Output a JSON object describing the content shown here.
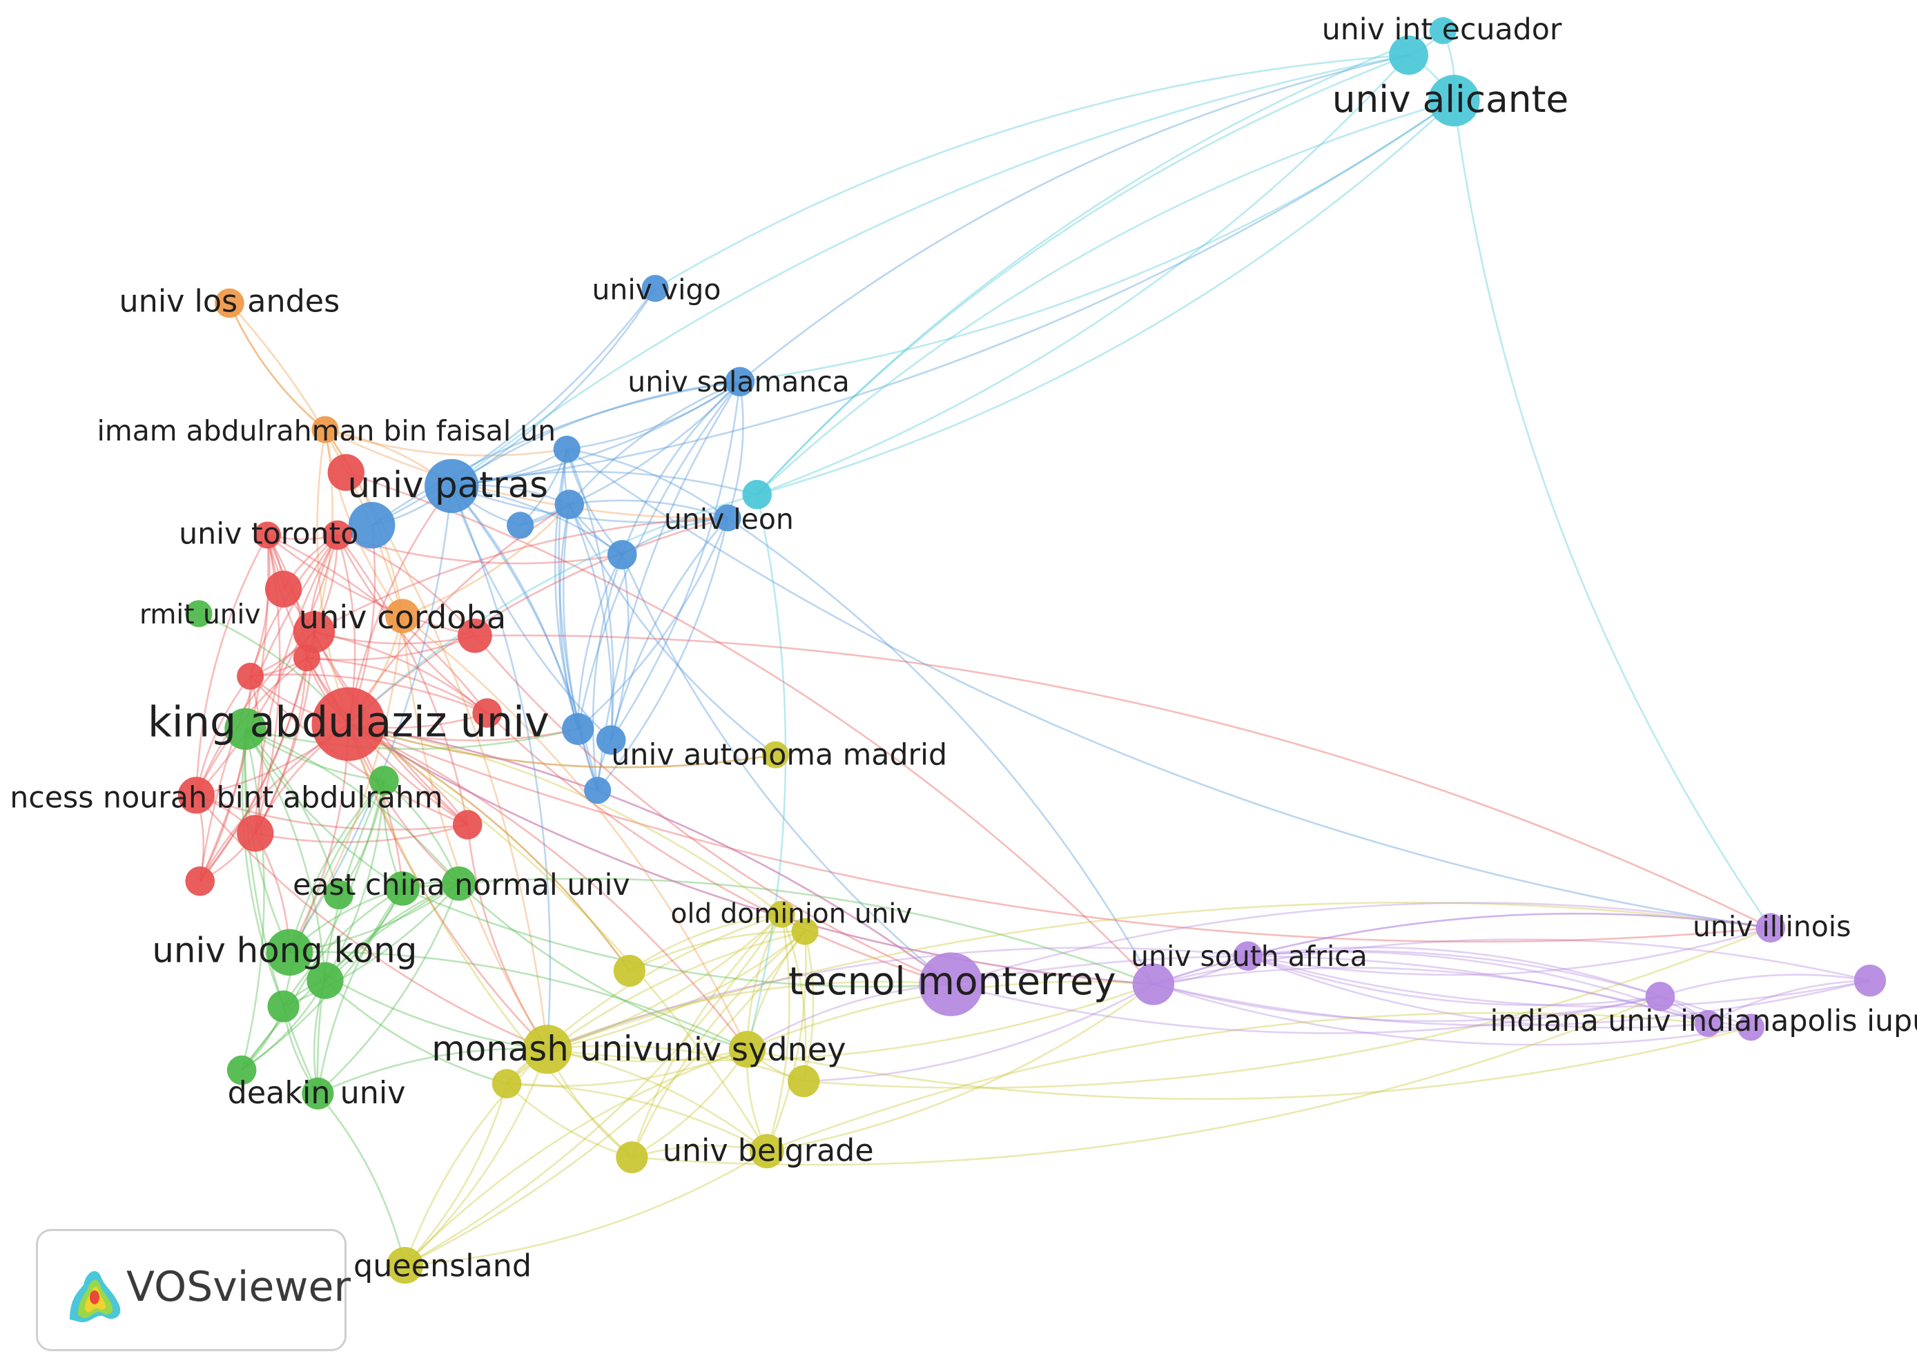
{
  "app": {
    "name": "VOSviewer"
  },
  "colors": {
    "red": "#e84f4f",
    "green": "#4cb848",
    "blue": "#4d93d7",
    "yellow": "#c9c62f",
    "purple": "#b487e0",
    "cyan": "#4ac7d8",
    "orange": "#ef9845"
  },
  "network": {
    "labels": [
      {
        "id": "univ_int_ecuador",
        "text": "univ int ecuador"
      },
      {
        "id": "univ_alicante",
        "text": "univ alicante"
      },
      {
        "id": "univ_los_andes",
        "text": "univ los andes"
      },
      {
        "id": "univ_vigo",
        "text": "univ vigo"
      },
      {
        "id": "univ_salamanca",
        "text": "univ salamanca"
      },
      {
        "id": "imam_abdulrahman",
        "text": "imam abdulrahman bin faisal un"
      },
      {
        "id": "univ_patras",
        "text": "univ patras"
      },
      {
        "id": "univ_toronto",
        "text": "univ toronto"
      },
      {
        "id": "univ_leon",
        "text": "univ leon"
      },
      {
        "id": "rmit_univ",
        "text": "rmit univ"
      },
      {
        "id": "univ_cordoba",
        "text": "univ cordoba"
      },
      {
        "id": "king_abdulaziz",
        "text": "king abdulaziz univ"
      },
      {
        "id": "univ_autonoma_madrid",
        "text": "univ autonoma madrid"
      },
      {
        "id": "princess_nourah",
        "text": "ncess nourah bint abdulrahm"
      },
      {
        "id": "east_china_normal",
        "text": "east china normal univ"
      },
      {
        "id": "old_dominion",
        "text": "old dominion univ"
      },
      {
        "id": "univ_illinois",
        "text": "univ illinois"
      },
      {
        "id": "univ_hong_kong",
        "text": "univ hong kong"
      },
      {
        "id": "univ_south_africa",
        "text": "univ south africa"
      },
      {
        "id": "tecnol_monterrey",
        "text": "tecnol monterrey"
      },
      {
        "id": "indiana_univ",
        "text": "indiana univ indianapolis iupu"
      },
      {
        "id": "monash_univ",
        "text": "monash univ"
      },
      {
        "id": "univ_sydney",
        "text": "univ sydney"
      },
      {
        "id": "deakin_univ",
        "text": "deakin univ"
      },
      {
        "id": "univ_belgrade",
        "text": "univ belgrade"
      },
      {
        "id": "univ_queensland",
        "text": "univ queensland"
      }
    ]
  }
}
